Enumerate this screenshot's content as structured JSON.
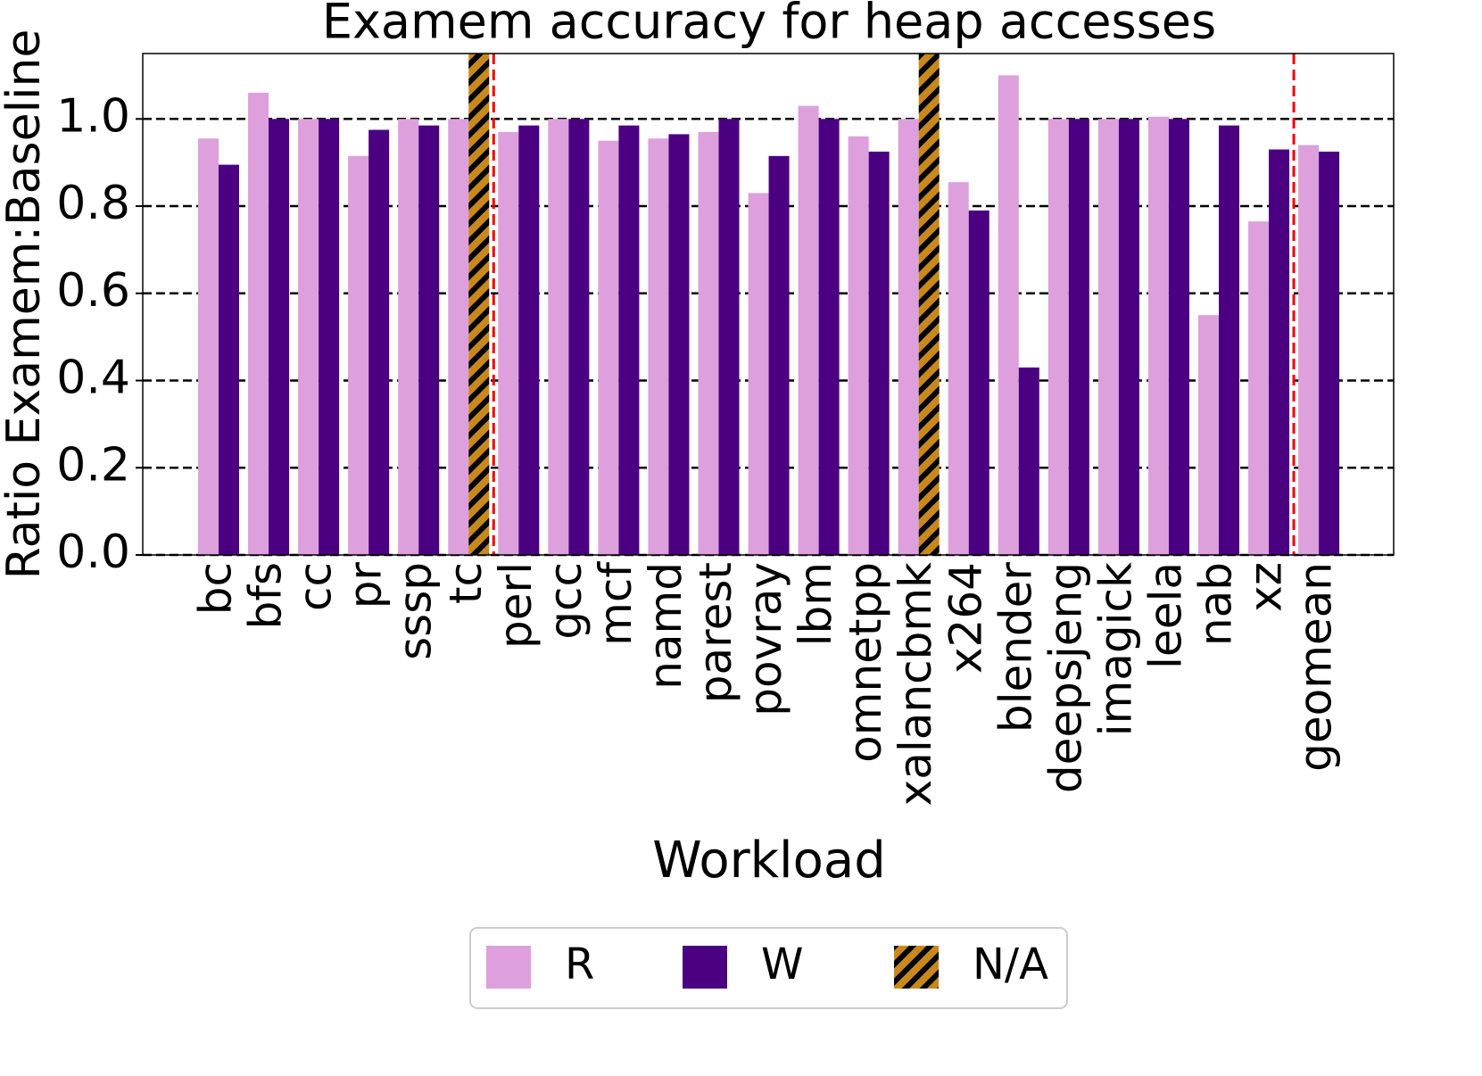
{
  "chart_data": {
    "type": "bar",
    "title": "Examem accuracy for heap accesses",
    "x_label": "Workload",
    "y_label": "Ratio Examem:Baseline",
    "categories": [
      "bc",
      "bfs",
      "cc",
      "pr",
      "sssp",
      "tc",
      "perl",
      "gcc",
      "mcf",
      "namd",
      "parest",
      "povray",
      "lbm",
      "omnetpp",
      "xalancbmk",
      "x264",
      "blender",
      "deepsjeng",
      "imagick",
      "leela",
      "nab",
      "xz",
      "geomean"
    ],
    "series": [
      {
        "name": "R",
        "color": "#dda0dd",
        "values": [
          0.955,
          1.06,
          1.0,
          0.915,
          1.0,
          1.0,
          0.97,
          1.0,
          0.95,
          0.955,
          0.97,
          0.83,
          1.03,
          0.96,
          1.0,
          0.855,
          1.1,
          1.0,
          1.0,
          1.005,
          0.55,
          0.765,
          0.94
        ]
      },
      {
        "name": "W",
        "color": "#4b0082",
        "values": [
          0.895,
          1.0,
          1.0,
          0.975,
          0.985,
          null,
          0.985,
          1.0,
          0.985,
          0.965,
          1.0,
          0.915,
          1.0,
          0.925,
          null,
          0.79,
          0.43,
          1.0,
          1.0,
          1.0,
          0.985,
          0.93,
          0.925
        ]
      },
      {
        "name": "N/A",
        "color": "#c8891c",
        "hatch": true,
        "values": [
          null,
          null,
          null,
          null,
          null,
          1.15,
          null,
          null,
          null,
          null,
          null,
          null,
          null,
          null,
          1.15,
          null,
          null,
          null,
          null,
          null,
          null,
          null,
          null
        ]
      }
    ],
    "separators_after": [
      5,
      21
    ],
    "ylim": [
      0,
      1.15
    ],
    "yticks": [
      {
        "value": 0,
        "label": "0.0"
      },
      {
        "value": 0.2,
        "label": "0.2"
      },
      {
        "value": 0.4,
        "label": "0.4"
      },
      {
        "value": 0.6,
        "label": "0.6"
      },
      {
        "value": 0.8,
        "label": "0.8"
      },
      {
        "value": 1.0,
        "label": "1.0"
      }
    ],
    "grid": true,
    "legend": "bottom"
  }
}
